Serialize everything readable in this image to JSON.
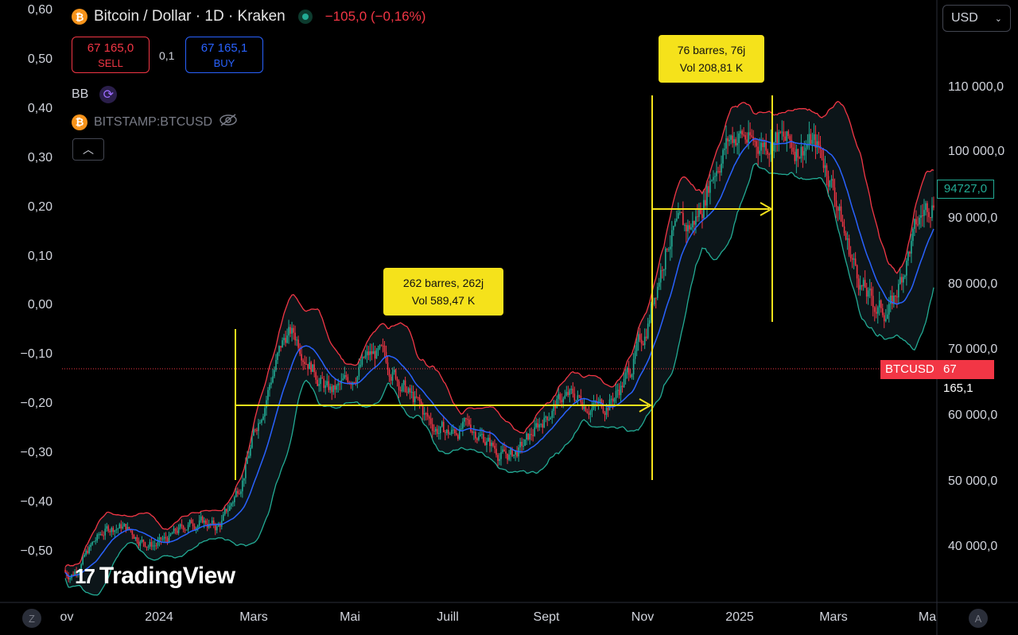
{
  "header": {
    "title": "Bitcoin / Dollar · 1D · Kraken",
    "symbol_icon": "bitcoin-icon",
    "change": "−105,0 (−0,16%)",
    "sell_price": "67 165,0",
    "sell_label": "SELL",
    "buy_price": "67 165,1",
    "buy_label": "BUY",
    "spread": "0,1"
  },
  "indicators": {
    "bb_label": "BB",
    "compare_symbol": "BITSTAMP:BTCUSD"
  },
  "currency_select": "USD",
  "left_axis_ticks": [
    "0,60",
    "0,50",
    "0,40",
    "0,30",
    "0,20",
    "0,10",
    "0,00",
    "−0,10",
    "−0,20",
    "−0,30",
    "−0,40",
    "−0,50"
  ],
  "right_axis_ticks": [
    "110 000,0",
    "100 000,0",
    "90 000,0",
    "80 000,0",
    "70 000,0",
    "60 000,0",
    "50 000,0",
    "40 000,0"
  ],
  "x_ticks": [
    "ov",
    "2024",
    "Mars",
    "Mai",
    "Juill",
    "Sept",
    "Nov",
    "2025",
    "Mars",
    "Ma"
  ],
  "price_tags": {
    "symbol": "BTCUSD",
    "current": "67 165,1",
    "last": "94727,0"
  },
  "callouts": {
    "range1_line1": "262 barres, 262j",
    "range1_line2": "Vol 589,47 K",
    "range2_line1": "76 barres, 76j",
    "range2_line2": "Vol 208,81 K"
  },
  "watermark": "TradingView",
  "corners": {
    "left": "Z",
    "right": "A"
  },
  "colors": {
    "up": "#22ab94",
    "down": "#f23645",
    "bb_upper": "#f23645",
    "bb_basis": "#2962ff",
    "bb_lower": "#22ab94",
    "measure": "#f5e21b"
  },
  "chart_data": {
    "type": "line",
    "title": "Bitcoin / Dollar · 1D · Kraken",
    "indicator": "Bollinger Bands",
    "y_range_right": [
      30000,
      116000
    ],
    "y_range_left": [
      -0.55,
      0.6
    ],
    "series": [
      {
        "name": "BB",
        "x": [
          "2023-11-10",
          "2023-12-15",
          "2024-01-15",
          "2024-02-10",
          "2024-03-05",
          "2024-03-25",
          "2024-04-20",
          "2024-05-20",
          "2024-06-15",
          "2024-07-05",
          "2024-08-05",
          "2024-09-05",
          "2024-10-01",
          "2024-10-25",
          "2024-11-05",
          "2024-11-20",
          "2024-12-15",
          "2025-01-10",
          "2025-01-25",
          "2025-02-15",
          "2025-03-10",
          "2025-04-08",
          "2025-04-25",
          "2025-05-05"
        ],
        "values": [
          36000,
          41500,
          42500,
          44000,
          61000,
          69000,
          64000,
          65500,
          66000,
          58000,
          56000,
          56500,
          62000,
          66500,
          72000,
          92000,
          100500,
          97000,
          104000,
          97500,
          84500,
          80000,
          89000,
          94700
        ]
      }
    ],
    "measurements": [
      {
        "from": "2024-02-27",
        "to": "2024-11-15",
        "bars": 262,
        "days": 262,
        "volume": "589,47 K"
      },
      {
        "from": "2024-11-15",
        "to": "2025-01-30",
        "bars": 76,
        "days": 76,
        "volume": "208,81 K"
      }
    ],
    "last_price": 67165.1
  }
}
